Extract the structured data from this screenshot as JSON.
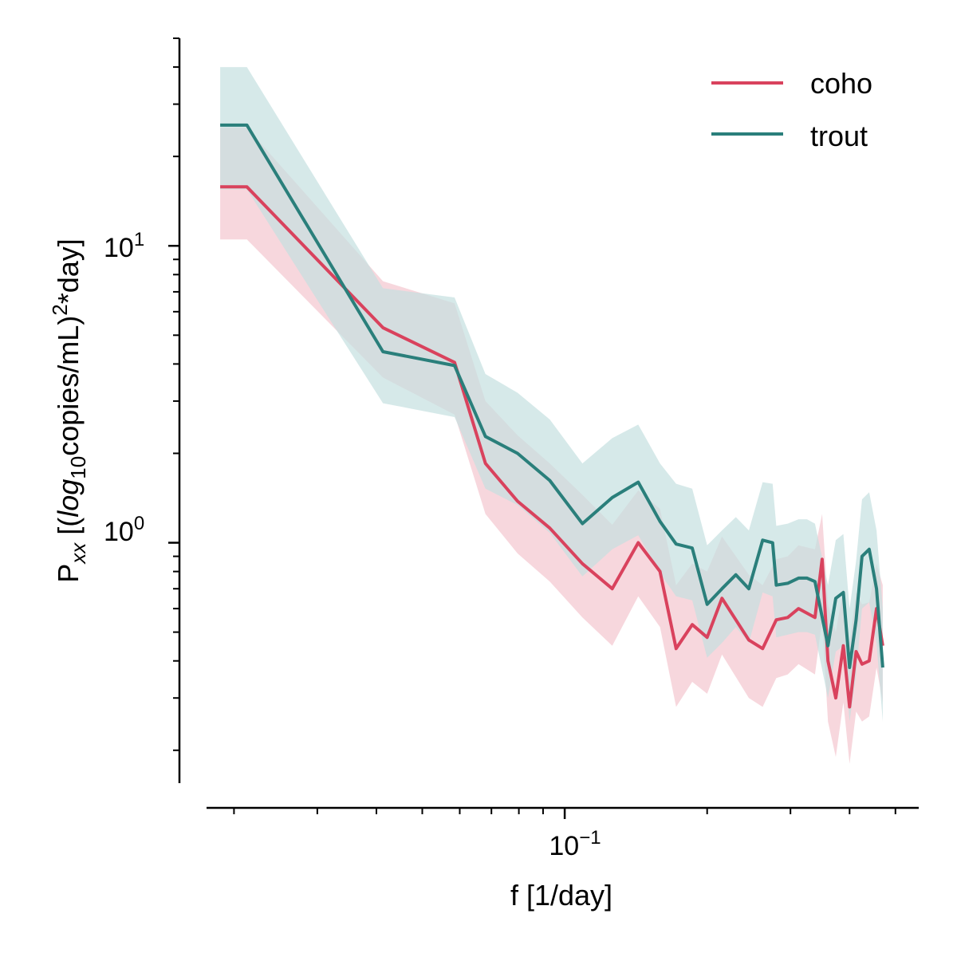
{
  "chart_data": {
    "type": "line",
    "x_scale": "log",
    "y_scale": "log",
    "xlim": [
      0.0175,
      0.56
    ],
    "ylim": [
      0.155,
      50
    ],
    "xlabel": "f [1/day]",
    "ylabel": {
      "prefix": "P",
      "prefix_sub": "xx",
      "open": " [(",
      "log": "log",
      "log_sub": "10",
      "units": "copies/mL)",
      "power": "2",
      "suffix": "*day]"
    },
    "x_tick_labels": [
      {
        "value": 0.1,
        "base": "10",
        "exp": "−1"
      }
    ],
    "y_tick_labels": [
      {
        "value": 1,
        "base": "10",
        "exp": "0"
      },
      {
        "value": 10,
        "base": "10",
        "exp": "1"
      }
    ],
    "legend": {
      "position": "top-right"
    },
    "series": [
      {
        "name": "coho",
        "color": "#d9425d",
        "band_color": "#f4c6ce",
        "points": [
          [
            0.0187,
            15.8
          ],
          [
            0.0213,
            15.8
          ],
          [
            0.0413,
            5.3
          ],
          [
            0.0585,
            4.05
          ],
          [
            0.068,
            1.85
          ],
          [
            0.0795,
            1.38
          ],
          [
            0.093,
            1.12
          ],
          [
            0.109,
            0.85
          ],
          [
            0.126,
            0.7
          ],
          [
            0.143,
            1.0
          ],
          [
            0.159,
            0.8
          ],
          [
            0.172,
            0.44
          ],
          [
            0.186,
            0.53
          ],
          [
            0.2,
            0.48
          ],
          [
            0.215,
            0.65
          ],
          [
            0.245,
            0.47
          ],
          [
            0.262,
            0.44
          ],
          [
            0.28,
            0.55
          ],
          [
            0.296,
            0.56
          ],
          [
            0.312,
            0.6
          ],
          [
            0.338,
            0.56
          ],
          [
            0.35,
            0.88
          ],
          [
            0.36,
            0.4
          ],
          [
            0.374,
            0.3
          ],
          [
            0.388,
            0.45
          ],
          [
            0.4,
            0.28
          ],
          [
            0.413,
            0.43
          ],
          [
            0.425,
            0.39
          ],
          [
            0.44,
            0.4
          ],
          [
            0.456,
            0.6
          ],
          [
            0.47,
            0.45
          ]
        ],
        "band_upper": [
          [
            0.0187,
            25
          ],
          [
            0.0213,
            25
          ],
          [
            0.0413,
            7.6
          ],
          [
            0.0585,
            6.4
          ],
          [
            0.068,
            3.0
          ],
          [
            0.0795,
            2.3
          ],
          [
            0.093,
            1.85
          ],
          [
            0.109,
            1.45
          ],
          [
            0.126,
            1.15
          ],
          [
            0.143,
            1.5
          ],
          [
            0.159,
            1.3
          ],
          [
            0.172,
            0.72
          ],
          [
            0.186,
            0.85
          ],
          [
            0.2,
            0.8
          ],
          [
            0.215,
            1.05
          ],
          [
            0.245,
            0.78
          ],
          [
            0.262,
            0.72
          ],
          [
            0.28,
            0.88
          ],
          [
            0.296,
            0.9
          ],
          [
            0.312,
            0.98
          ],
          [
            0.338,
            0.95
          ],
          [
            0.35,
            1.25
          ],
          [
            0.36,
            0.62
          ],
          [
            0.374,
            0.5
          ],
          [
            0.388,
            0.7
          ],
          [
            0.4,
            0.46
          ],
          [
            0.413,
            0.68
          ],
          [
            0.425,
            0.62
          ],
          [
            0.44,
            0.63
          ],
          [
            0.456,
            0.85
          ],
          [
            0.47,
            0.72
          ]
        ],
        "band_lower": [
          [
            0.0187,
            10.5
          ],
          [
            0.0213,
            10.5
          ],
          [
            0.0413,
            3.6
          ],
          [
            0.0585,
            2.7
          ],
          [
            0.068,
            1.25
          ],
          [
            0.0795,
            0.92
          ],
          [
            0.093,
            0.74
          ],
          [
            0.109,
            0.56
          ],
          [
            0.126,
            0.45
          ],
          [
            0.143,
            0.66
          ],
          [
            0.159,
            0.52
          ],
          [
            0.172,
            0.28
          ],
          [
            0.186,
            0.34
          ],
          [
            0.2,
            0.31
          ],
          [
            0.215,
            0.42
          ],
          [
            0.245,
            0.3
          ],
          [
            0.262,
            0.28
          ],
          [
            0.28,
            0.35
          ],
          [
            0.296,
            0.36
          ],
          [
            0.312,
            0.39
          ],
          [
            0.338,
            0.36
          ],
          [
            0.35,
            0.55
          ],
          [
            0.36,
            0.25
          ],
          [
            0.374,
            0.19
          ],
          [
            0.388,
            0.29
          ],
          [
            0.4,
            0.18
          ],
          [
            0.413,
            0.27
          ],
          [
            0.425,
            0.25
          ],
          [
            0.44,
            0.26
          ],
          [
            0.456,
            0.38
          ],
          [
            0.47,
            0.29
          ]
        ]
      },
      {
        "name": "trout",
        "color": "#2a7f7b",
        "band_color": "#c5e0e0",
        "points": [
          [
            0.0187,
            25.5
          ],
          [
            0.0213,
            25.5
          ],
          [
            0.0413,
            4.4
          ],
          [
            0.0585,
            3.95
          ],
          [
            0.068,
            2.28
          ],
          [
            0.0795,
            2.0
          ],
          [
            0.093,
            1.62
          ],
          [
            0.109,
            1.16
          ],
          [
            0.126,
            1.42
          ],
          [
            0.143,
            1.6
          ],
          [
            0.159,
            1.18
          ],
          [
            0.172,
            0.99
          ],
          [
            0.186,
            0.96
          ],
          [
            0.2,
            0.62
          ],
          [
            0.215,
            0.7
          ],
          [
            0.23,
            0.78
          ],
          [
            0.245,
            0.7
          ],
          [
            0.262,
            1.02
          ],
          [
            0.275,
            1.0
          ],
          [
            0.28,
            0.72
          ],
          [
            0.296,
            0.73
          ],
          [
            0.312,
            0.76
          ],
          [
            0.325,
            0.76
          ],
          [
            0.338,
            0.74
          ],
          [
            0.36,
            0.45
          ],
          [
            0.374,
            0.65
          ],
          [
            0.388,
            0.68
          ],
          [
            0.4,
            0.38
          ],
          [
            0.413,
            0.55
          ],
          [
            0.425,
            0.9
          ],
          [
            0.44,
            0.95
          ],
          [
            0.456,
            0.7
          ],
          [
            0.47,
            0.38
          ]
        ],
        "band_upper": [
          [
            0.0187,
            40
          ],
          [
            0.0213,
            40
          ],
          [
            0.0413,
            7.2
          ],
          [
            0.0585,
            6.7
          ],
          [
            0.068,
            3.7
          ],
          [
            0.0795,
            3.2
          ],
          [
            0.093,
            2.6
          ],
          [
            0.109,
            1.85
          ],
          [
            0.126,
            2.25
          ],
          [
            0.143,
            2.5
          ],
          [
            0.159,
            1.85
          ],
          [
            0.172,
            1.58
          ],
          [
            0.186,
            1.52
          ],
          [
            0.2,
            0.98
          ],
          [
            0.215,
            1.1
          ],
          [
            0.23,
            1.22
          ],
          [
            0.245,
            1.1
          ],
          [
            0.262,
            1.6
          ],
          [
            0.275,
            1.58
          ],
          [
            0.28,
            1.14
          ],
          [
            0.296,
            1.16
          ],
          [
            0.312,
            1.2
          ],
          [
            0.325,
            1.2
          ],
          [
            0.338,
            1.16
          ],
          [
            0.36,
            0.72
          ],
          [
            0.374,
            1.02
          ],
          [
            0.388,
            1.07
          ],
          [
            0.4,
            0.6
          ],
          [
            0.413,
            0.87
          ],
          [
            0.425,
            1.4
          ],
          [
            0.44,
            1.48
          ],
          [
            0.456,
            1.1
          ],
          [
            0.47,
            0.6
          ]
        ],
        "band_lower": [
          [
            0.0187,
            15.5
          ],
          [
            0.0213,
            15.5
          ],
          [
            0.0413,
            2.95
          ],
          [
            0.0585,
            2.65
          ],
          [
            0.068,
            1.52
          ],
          [
            0.0795,
            1.34
          ],
          [
            0.093,
            1.08
          ],
          [
            0.109,
            0.77
          ],
          [
            0.126,
            0.95
          ],
          [
            0.143,
            1.06
          ],
          [
            0.159,
            0.79
          ],
          [
            0.172,
            0.66
          ],
          [
            0.186,
            0.64
          ],
          [
            0.2,
            0.41
          ],
          [
            0.215,
            0.46
          ],
          [
            0.23,
            0.52
          ],
          [
            0.245,
            0.46
          ],
          [
            0.262,
            0.68
          ],
          [
            0.275,
            0.66
          ],
          [
            0.28,
            0.48
          ],
          [
            0.296,
            0.49
          ],
          [
            0.312,
            0.5
          ],
          [
            0.325,
            0.5
          ],
          [
            0.338,
            0.49
          ],
          [
            0.36,
            0.3
          ],
          [
            0.374,
            0.43
          ],
          [
            0.388,
            0.45
          ],
          [
            0.4,
            0.25
          ],
          [
            0.413,
            0.36
          ],
          [
            0.425,
            0.6
          ],
          [
            0.44,
            0.63
          ],
          [
            0.456,
            0.46
          ],
          [
            0.47,
            0.25
          ]
        ]
      }
    ]
  }
}
